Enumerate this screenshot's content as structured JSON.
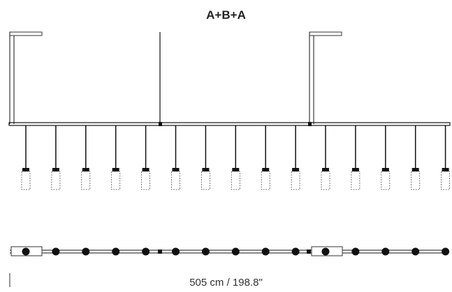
{
  "title": "A+B+A",
  "dimension_label": "505 cm / 198.8\"",
  "configuration": {
    "modules": [
      "A",
      "B",
      "A"
    ],
    "pendants_per_module": [
      5,
      5,
      5
    ]
  },
  "colors": {
    "line": "#111111",
    "shade_outline": "#555555",
    "canopy_outline": "#333333"
  }
}
